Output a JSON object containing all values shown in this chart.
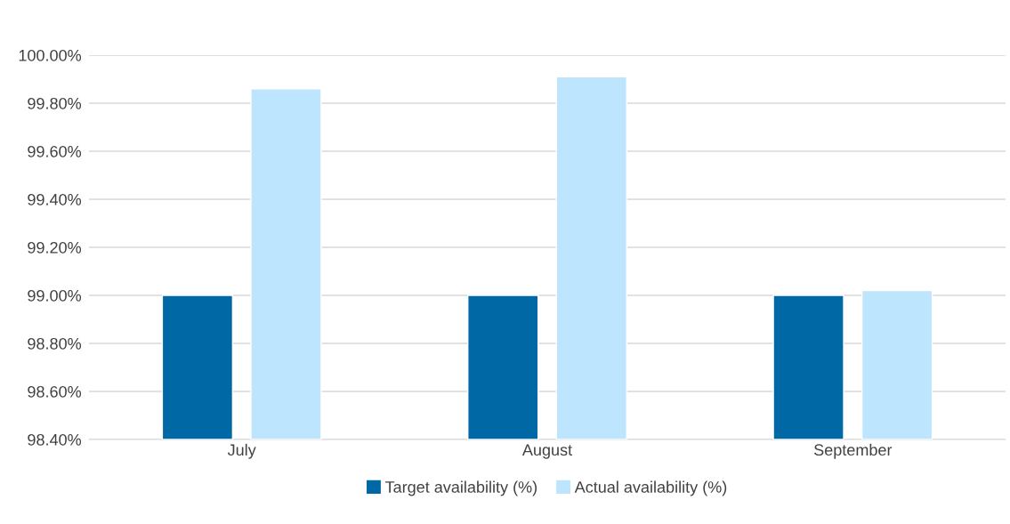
{
  "chart_data": {
    "type": "bar",
    "categories": [
      "July",
      "August",
      "September"
    ],
    "series": [
      {
        "name": "Target availability (%)",
        "color": "#0068a5",
        "values": [
          99.0,
          99.0,
          99.0
        ]
      },
      {
        "name": "Actual availability (%)",
        "color": "#bde5fe",
        "values": [
          99.86,
          99.91,
          99.02
        ]
      }
    ],
    "ylim": [
      98.4,
      100.0
    ],
    "yticks": [
      {
        "value": 98.4,
        "label": "98.40%"
      },
      {
        "value": 98.6,
        "label": "98.60%"
      },
      {
        "value": 98.8,
        "label": "98.80%"
      },
      {
        "value": 99.0,
        "label": "99.00%"
      },
      {
        "value": 99.2,
        "label": "99.20%"
      },
      {
        "value": 99.4,
        "label": "99.40%"
      },
      {
        "value": 99.6,
        "label": "99.60%"
      },
      {
        "value": 99.8,
        "label": "99.80%"
      },
      {
        "value": 100.0,
        "label": "100.00%"
      }
    ],
    "grid": "y",
    "legend": "bottom"
  }
}
